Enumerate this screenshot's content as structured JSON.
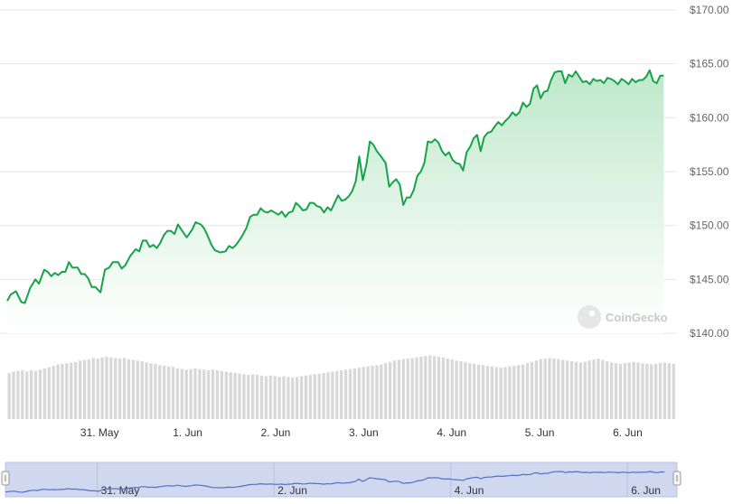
{
  "chart_data": {
    "type": "area",
    "title": "",
    "xlabel": "",
    "ylabel": "",
    "x_ticks": [
      "31. May",
      "1. Jun",
      "2. Jun",
      "3. Jun",
      "4. Jun",
      "5. Jun",
      "6. Jun"
    ],
    "navigator_ticks": [
      "31. May",
      "2. Jun",
      "4. Jun",
      "6. Jun"
    ],
    "y_ticks": [
      "$140.00",
      "$145.00",
      "$150.00",
      "$155.00",
      "$160.00",
      "$165.00",
      "$170.00"
    ],
    "ylim": [
      140,
      170
    ],
    "x_start_day": 29.95,
    "x_end_day": 37.55,
    "series": [
      {
        "color": "#16a34a",
        "points": [
          [
            29.95,
            143.0
          ],
          [
            29.99,
            143.6
          ],
          [
            30.05,
            143.9
          ],
          [
            30.11,
            142.9
          ],
          [
            30.15,
            142.8
          ],
          [
            30.21,
            144.2
          ],
          [
            30.27,
            145.0
          ],
          [
            30.31,
            144.6
          ],
          [
            30.37,
            145.9
          ],
          [
            30.41,
            145.7
          ],
          [
            30.45,
            145.3
          ],
          [
            30.49,
            145.6
          ],
          [
            30.53,
            145.4
          ],
          [
            30.57,
            145.7
          ],
          [
            30.61,
            145.7
          ],
          [
            30.65,
            146.6
          ],
          [
            30.69,
            146.1
          ],
          [
            30.75,
            146.1
          ],
          [
            30.79,
            145.5
          ],
          [
            30.83,
            145.5
          ],
          [
            30.87,
            145.1
          ],
          [
            30.91,
            144.3
          ],
          [
            30.95,
            144.3
          ],
          [
            31.01,
            143.8
          ],
          [
            31.06,
            145.9
          ],
          [
            31.11,
            146.1
          ],
          [
            31.15,
            146.6
          ],
          [
            31.21,
            146.6
          ],
          [
            31.25,
            146.0
          ],
          [
            31.29,
            146.3
          ],
          [
            31.35,
            147.2
          ],
          [
            31.41,
            147.8
          ],
          [
            31.45,
            147.6
          ],
          [
            31.49,
            148.6
          ],
          [
            31.53,
            148.6
          ],
          [
            31.57,
            148.0
          ],
          [
            31.61,
            148.2
          ],
          [
            31.65,
            147.9
          ],
          [
            31.69,
            148.4
          ],
          [
            31.73,
            149.1
          ],
          [
            31.77,
            149.5
          ],
          [
            31.81,
            149.5
          ],
          [
            31.85,
            149.2
          ],
          [
            31.89,
            150.1
          ],
          [
            31.93,
            149.6
          ],
          [
            31.99,
            148.9
          ],
          [
            32.05,
            149.6
          ],
          [
            32.09,
            150.3
          ],
          [
            32.15,
            150.1
          ],
          [
            32.19,
            149.7
          ],
          [
            32.23,
            149.0
          ],
          [
            32.27,
            148.2
          ],
          [
            32.31,
            147.7
          ],
          [
            32.37,
            147.5
          ],
          [
            32.43,
            147.6
          ],
          [
            32.47,
            148.1
          ],
          [
            32.51,
            147.9
          ],
          [
            32.55,
            148.2
          ],
          [
            32.61,
            148.9
          ],
          [
            32.67,
            149.8
          ],
          [
            32.71,
            150.8
          ],
          [
            32.75,
            151.0
          ],
          [
            32.79,
            151.0
          ],
          [
            32.83,
            151.6
          ],
          [
            32.87,
            151.3
          ],
          [
            32.91,
            151.2
          ],
          [
            32.95,
            151.4
          ],
          [
            32.99,
            151.2
          ],
          [
            33.03,
            151.0
          ],
          [
            33.07,
            151.3
          ],
          [
            33.11,
            150.8
          ],
          [
            33.15,
            151.2
          ],
          [
            33.19,
            151.3
          ],
          [
            33.23,
            152.1
          ],
          [
            33.27,
            151.8
          ],
          [
            33.31,
            151.4
          ],
          [
            33.35,
            151.5
          ],
          [
            33.39,
            152.1
          ],
          [
            33.43,
            152.1
          ],
          [
            33.47,
            151.8
          ],
          [
            33.51,
            151.7
          ],
          [
            33.55,
            151.2
          ],
          [
            33.59,
            151.7
          ],
          [
            33.63,
            151.4
          ],
          [
            33.67,
            152.1
          ],
          [
            33.71,
            152.8
          ],
          [
            33.75,
            152.3
          ],
          [
            33.79,
            152.4
          ],
          [
            33.83,
            152.7
          ],
          [
            33.87,
            153.2
          ],
          [
            33.91,
            154.1
          ],
          [
            33.95,
            156.4
          ],
          [
            33.99,
            154.2
          ],
          [
            34.03,
            155.6
          ],
          [
            34.07,
            157.8
          ],
          [
            34.11,
            157.5
          ],
          [
            34.15,
            156.9
          ],
          [
            34.19,
            156.5
          ],
          [
            34.25,
            155.8
          ],
          [
            34.29,
            153.6
          ],
          [
            34.33,
            154.0
          ],
          [
            34.37,
            154.3
          ],
          [
            34.41,
            153.8
          ],
          [
            34.45,
            151.9
          ],
          [
            34.49,
            152.6
          ],
          [
            34.53,
            152.6
          ],
          [
            34.57,
            153.3
          ],
          [
            34.61,
            154.6
          ],
          [
            34.65,
            155.0
          ],
          [
            34.69,
            155.8
          ],
          [
            34.73,
            157.8
          ],
          [
            34.77,
            157.7
          ],
          [
            34.81,
            158.0
          ],
          [
            34.85,
            157.7
          ],
          [
            34.89,
            156.9
          ],
          [
            34.93,
            156.5
          ],
          [
            34.97,
            156.8
          ],
          [
            35.01,
            156.1
          ],
          [
            35.05,
            155.8
          ],
          [
            35.09,
            155.7
          ],
          [
            35.13,
            155.1
          ],
          [
            35.17,
            156.8
          ],
          [
            35.21,
            157.3
          ],
          [
            35.25,
            158.1
          ],
          [
            35.29,
            158.4
          ],
          [
            35.33,
            156.9
          ],
          [
            35.37,
            158.2
          ],
          [
            35.41,
            158.6
          ],
          [
            35.45,
            158.7
          ],
          [
            35.49,
            159.2
          ],
          [
            35.53,
            159.6
          ],
          [
            35.57,
            159.3
          ],
          [
            35.61,
            159.7
          ],
          [
            35.65,
            160.0
          ],
          [
            35.69,
            160.5
          ],
          [
            35.73,
            160.2
          ],
          [
            35.77,
            160.5
          ],
          [
            35.81,
            161.4
          ],
          [
            35.85,
            161.0
          ],
          [
            35.89,
            161.3
          ],
          [
            35.93,
            162.7
          ],
          [
            35.97,
            163.0
          ],
          [
            36.01,
            161.8
          ],
          [
            36.05,
            162.4
          ],
          [
            36.09,
            162.5
          ],
          [
            36.13,
            163.5
          ],
          [
            36.17,
            164.2
          ],
          [
            36.21,
            164.3
          ],
          [
            36.25,
            164.3
          ],
          [
            36.29,
            163.2
          ],
          [
            36.33,
            164.0
          ],
          [
            36.37,
            163.8
          ],
          [
            36.41,
            164.3
          ],
          [
            36.45,
            163.8
          ],
          [
            36.49,
            163.3
          ],
          [
            36.53,
            163.4
          ],
          [
            36.57,
            163.1
          ],
          [
            36.61,
            163.6
          ],
          [
            36.65,
            163.4
          ],
          [
            36.69,
            163.5
          ],
          [
            36.73,
            163.2
          ],
          [
            36.77,
            163.7
          ],
          [
            36.81,
            163.6
          ],
          [
            36.85,
            163.4
          ],
          [
            36.89,
            163.1
          ],
          [
            36.93,
            163.6
          ],
          [
            36.97,
            163.4
          ],
          [
            37.01,
            163.1
          ],
          [
            37.05,
            163.6
          ],
          [
            37.09,
            163.3
          ],
          [
            37.13,
            163.5
          ],
          [
            37.17,
            163.5
          ],
          [
            37.21,
            163.8
          ],
          [
            37.25,
            164.4
          ],
          [
            37.29,
            163.4
          ],
          [
            37.33,
            163.2
          ],
          [
            37.37,
            163.9
          ],
          [
            37.41,
            163.9
          ]
        ]
      }
    ],
    "volume_relative": [
      0.71,
      0.73,
      0.74,
      0.75,
      0.73,
      0.75,
      0.74,
      0.76,
      0.78,
      0.8,
      0.82,
      0.84,
      0.85,
      0.86,
      0.87,
      0.88,
      0.9,
      0.91,
      0.92,
      0.94,
      0.93,
      0.95,
      0.96,
      0.95,
      0.94,
      0.93,
      0.94,
      0.92,
      0.91,
      0.9,
      0.89,
      0.87,
      0.86,
      0.85,
      0.83,
      0.82,
      0.81,
      0.8,
      0.78,
      0.77,
      0.76,
      0.77,
      0.78,
      0.77,
      0.76,
      0.75,
      0.76,
      0.75,
      0.74,
      0.73,
      0.72,
      0.71,
      0.7,
      0.69,
      0.68,
      0.69,
      0.68,
      0.67,
      0.66,
      0.67,
      0.66,
      0.65,
      0.66,
      0.65,
      0.64,
      0.65,
      0.66,
      0.67,
      0.68,
      0.69,
      0.7,
      0.71,
      0.72,
      0.73,
      0.74,
      0.75,
      0.76,
      0.77,
      0.78,
      0.79,
      0.8,
      0.81,
      0.82,
      0.83,
      0.84,
      0.86,
      0.88,
      0.9,
      0.91,
      0.92,
      0.93,
      0.94,
      0.95,
      0.96,
      0.97,
      0.98,
      0.97,
      0.96,
      0.95,
      0.93,
      0.92,
      0.9,
      0.89,
      0.88,
      0.86,
      0.85,
      0.84,
      0.83,
      0.82,
      0.81,
      0.8,
      0.79,
      0.8,
      0.81,
      0.82,
      0.83,
      0.84,
      0.86,
      0.88,
      0.9,
      0.92,
      0.93,
      0.94,
      0.93,
      0.92,
      0.91,
      0.9,
      0.89,
      0.88,
      0.87,
      0.88,
      0.9,
      0.92,
      0.93,
      0.91,
      0.89,
      0.87,
      0.86,
      0.85,
      0.86,
      0.87,
      0.88,
      0.87,
      0.86,
      0.85,
      0.84,
      0.85,
      0.86,
      0.87,
      0.86,
      0.85
    ],
    "watermark": "CoinGecko",
    "colors": {
      "line": "#16a34a",
      "area_top": "#bfe8ca",
      "area_bottom": "#ffffff",
      "grid": "#e6e6e6",
      "volume": "#d8d8d8",
      "navigator_fill": "#cfd8ef",
      "navigator_line": "#5470c6"
    }
  }
}
